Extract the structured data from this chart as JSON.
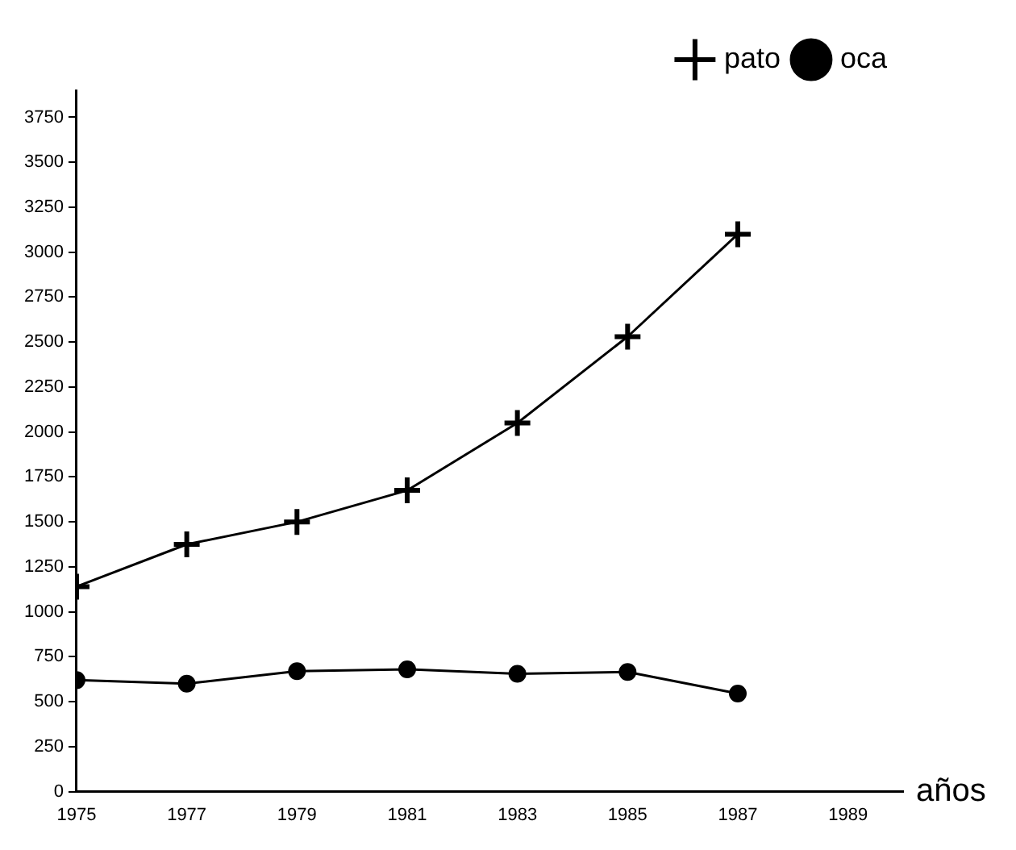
{
  "chart_data": {
    "type": "line",
    "xlabel": "años",
    "x": [
      1975,
      1977,
      1979,
      1981,
      1983,
      1985,
      1987
    ],
    "series": [
      {
        "name": "pato",
        "color": "#000000",
        "marker": "cross",
        "values": [
          1140,
          1375,
          1500,
          1675,
          2050,
          2530,
          3100
        ]
      },
      {
        "name": "oca",
        "color": "#000000",
        "marker": "circle",
        "values": [
          620,
          600,
          670,
          680,
          655,
          665,
          545
        ]
      }
    ],
    "xlim": [
      1975,
      1990
    ],
    "xticks": [
      1975,
      1977,
      1979,
      1981,
      1983,
      1985,
      1987,
      1989
    ],
    "ylim": [
      0,
      3900
    ],
    "yticks": [
      0,
      250,
      500,
      750,
      1000,
      1250,
      1500,
      1750,
      2000,
      2250,
      2500,
      2750,
      3000,
      3250,
      3500,
      3750
    ],
    "grid": false,
    "legend": "top right",
    "line_style": "solid"
  }
}
